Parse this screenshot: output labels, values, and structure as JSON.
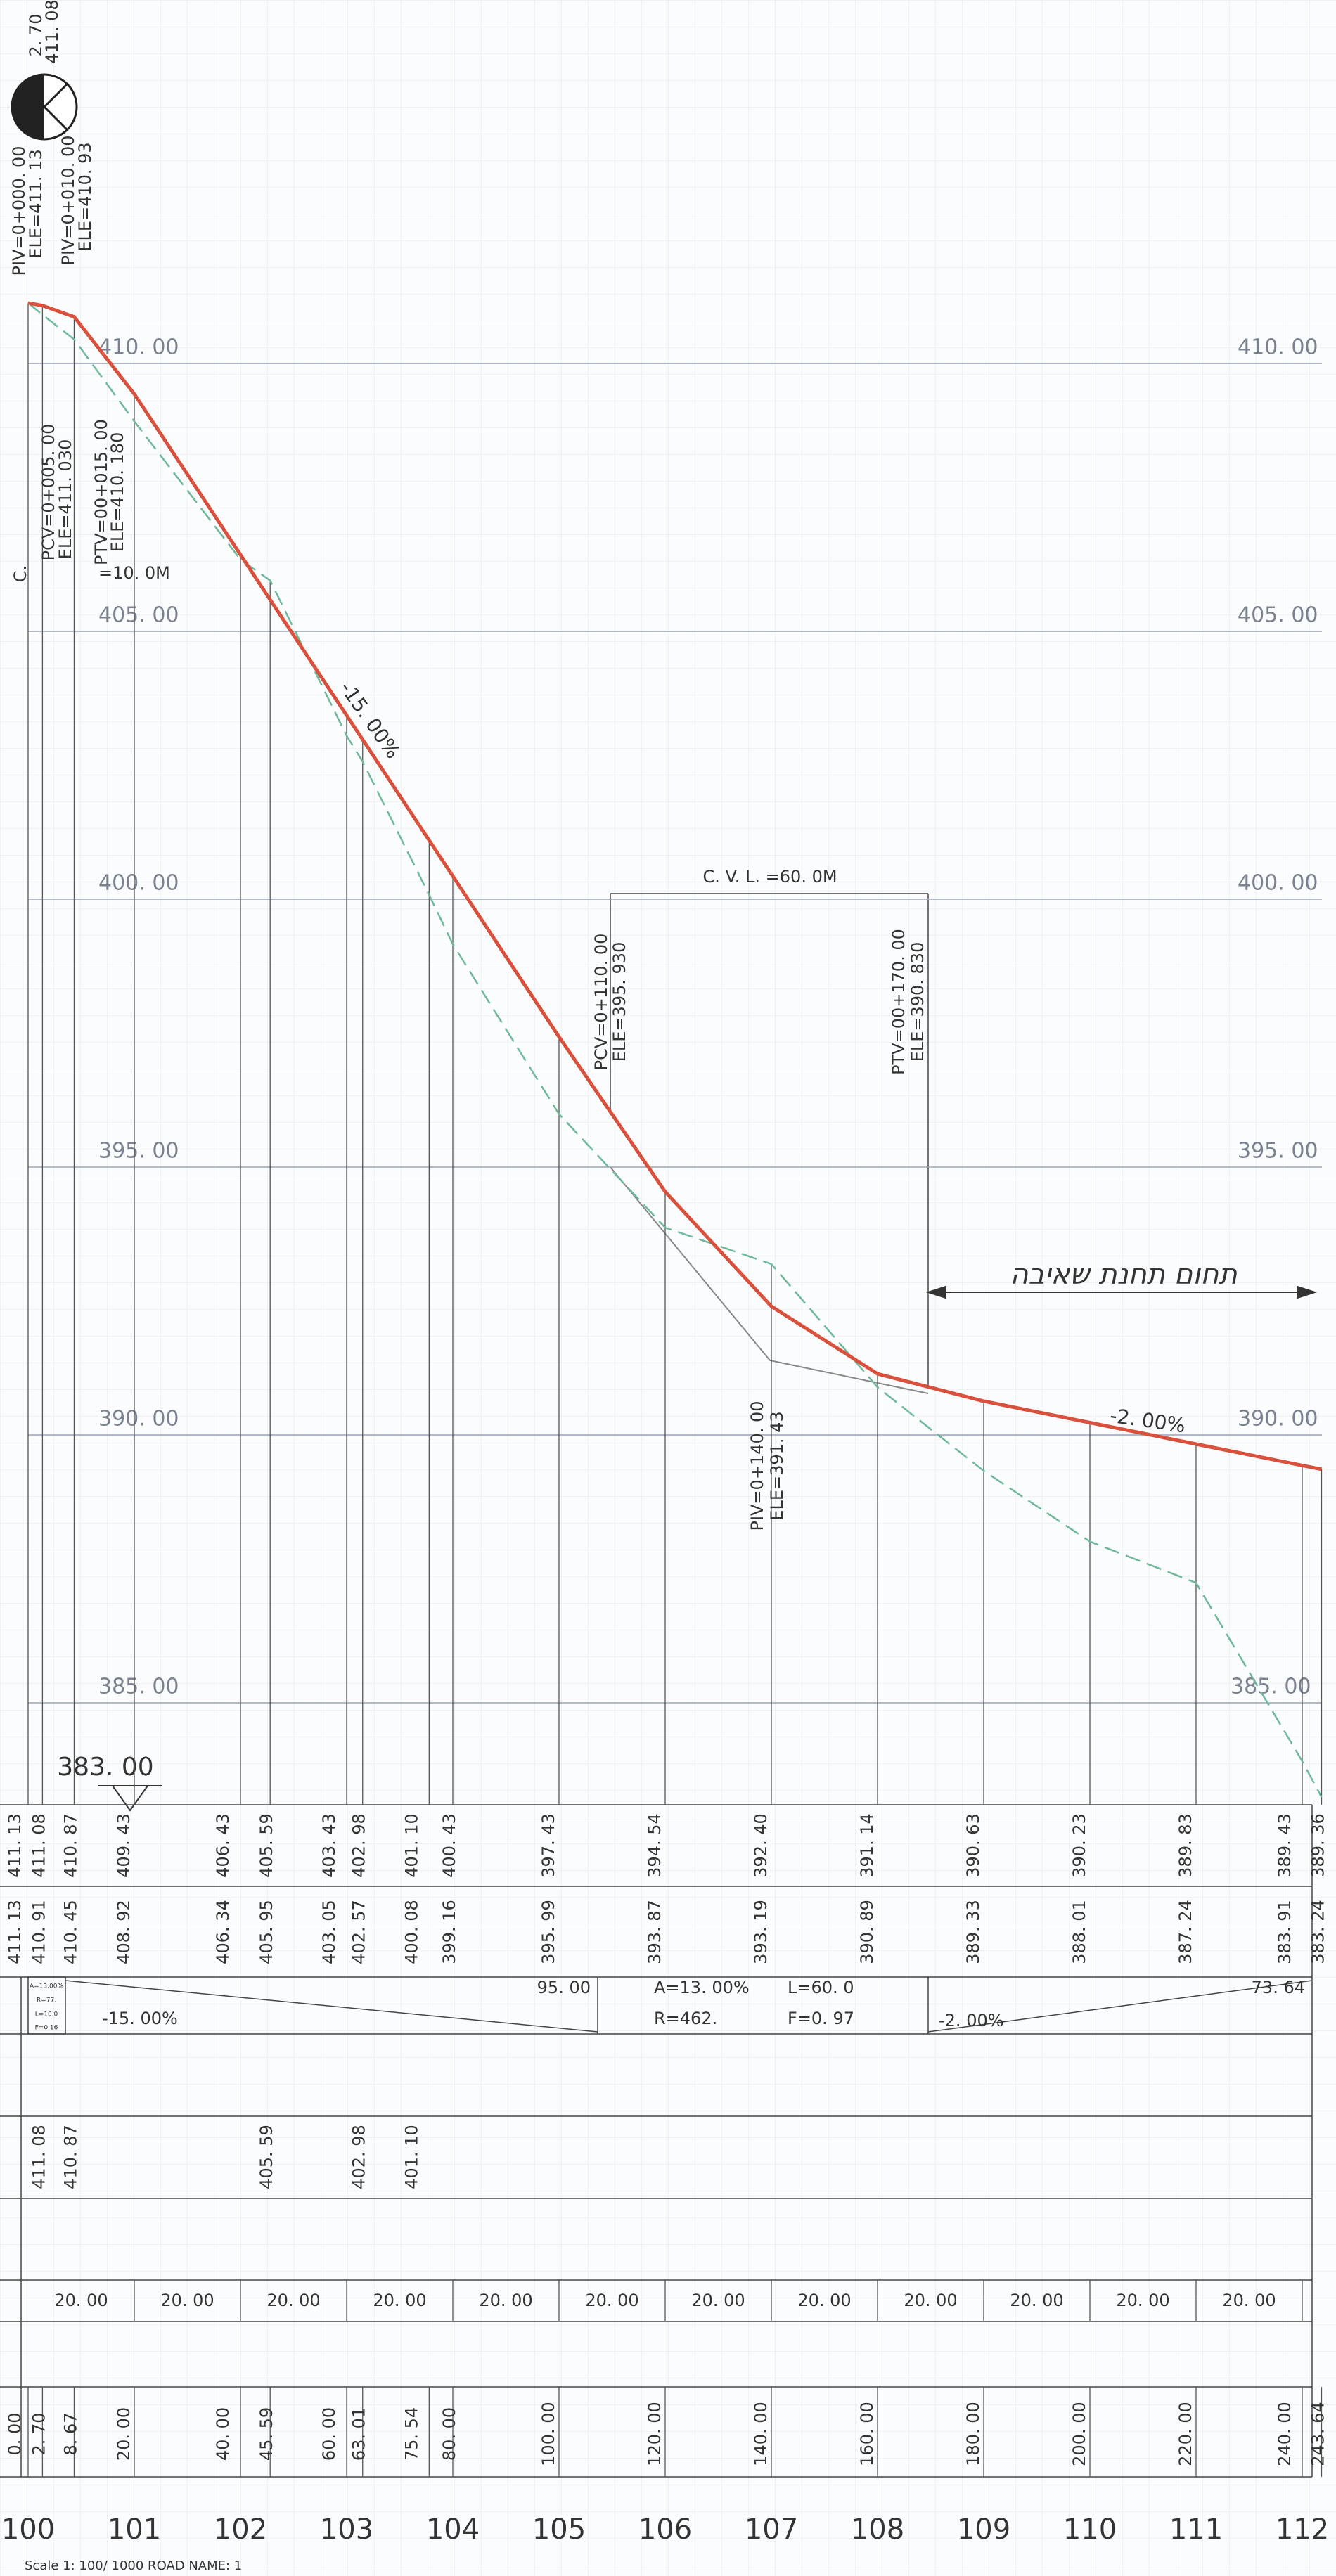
{
  "header": {
    "circle_top": [
      "2. 70",
      "411. 08"
    ],
    "piv_start": [
      "PIV=0+000. 00",
      "ELE=411. 13"
    ],
    "piv_second": [
      "PIV=0+010. 00",
      "ELE=410. 93"
    ],
    "first_curve": [
      "PCV=0+005. 00",
      "ELE=411. 030",
      "PTV=00+015. 00",
      "ELE=410. 180"
    ],
    "first_curve_mark": "C.",
    "first_curve_length": "=10. 0M"
  },
  "profile": {
    "elevation_labels": [
      "410. 00",
      "405. 00",
      "400. 00",
      "395. 00",
      "390. 00",
      "385. 00"
    ],
    "slope_labels": [
      "-15. 00%",
      "-2. 00%"
    ],
    "vertical_curve": {
      "length": "C. V. L. =60. 0M",
      "pcv": [
        "PCV=0+110. 00",
        "ELE=395. 930"
      ],
      "ptv": [
        "PTV=00+170. 00",
        "ELE=390. 830"
      ],
      "piv": [
        "PIV=0+140. 00",
        "ELE=391. 43"
      ]
    },
    "zone_label": "תחום תחנת שאיבה",
    "datum": "383. 00"
  },
  "table": {
    "design_elevations": [
      "411. 13",
      "411. 08",
      "410. 87",
      "409. 43",
      "406. 43",
      "405. 59",
      "403. 43",
      "402. 98",
      "401. 10",
      "400. 43",
      "397. 43",
      "394. 54",
      "392. 40",
      "391. 14",
      "390. 63",
      "390. 23",
      "389. 83",
      "389. 43",
      "389. 36"
    ],
    "ground_elevations": [
      "411. 13",
      "410. 91",
      "410. 45",
      "408. 92",
      "406. 34",
      "405. 95",
      "403. 05",
      "402. 57",
      "400. 08",
      "399. 16",
      "395. 99",
      "393. 87",
      "393. 19",
      "390. 89",
      "389. 33",
      "388. 01",
      "387. 24",
      "383. 91",
      "383. 24"
    ],
    "curve_info": {
      "small_box": [
        "A=13.00%",
        "R=77.",
        "L=10.0",
        "F=0.16"
      ],
      "slope_left": "-15. 00%",
      "length_left": "95. 00",
      "a": "A=13. 00%",
      "r": "R=462.",
      "l": "L=60. 0",
      "f": "F=0. 97",
      "slope_right": "-2. 00%",
      "length_right": "73. 64"
    },
    "break_elevations": [
      "411. 08",
      "410. 87",
      "405. 59",
      "402. 98",
      "401. 10"
    ],
    "distances": [
      "20. 00",
      "20. 00",
      "20. 00",
      "20. 00",
      "20. 00",
      "20. 00",
      "20. 00",
      "20. 00",
      "20. 00",
      "20. 00",
      "20. 00",
      "20. 00"
    ],
    "chainages": [
      "0. 00",
      "2. 70",
      "8. 67",
      "20. 00",
      "40. 00",
      "45. 59",
      "60. 00",
      "63. 01",
      "75. 54",
      "80. 00",
      "100. 00",
      "120. 00",
      "140. 00",
      "160. 00",
      "180. 00",
      "200. 00",
      "220. 00",
      "240. 00",
      "243. 64"
    ],
    "stations": [
      "100",
      "101",
      "102",
      "103",
      "104",
      "105",
      "106",
      "107",
      "108",
      "109",
      "110",
      "111",
      "112"
    ]
  },
  "footer": "Scale 1: 100/ 1000 ROAD NAME: 1"
}
